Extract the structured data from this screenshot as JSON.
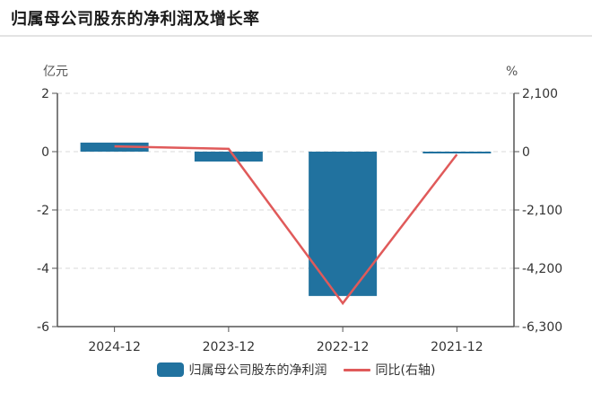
{
  "header": {
    "title": "归属母公司股东的净利润及增长率"
  },
  "colors": {
    "bar": "#21729f",
    "line": "#e05a5a",
    "grid": "#d9d9d9",
    "axis": "#555555"
  },
  "legend": {
    "items": [
      {
        "label": "归属母公司股东的净利润",
        "type": "bar"
      },
      {
        "label": "同比(右轴)",
        "type": "line"
      }
    ]
  },
  "chart_data": {
    "type": "bar",
    "title": "归属母公司股东的净利润及增长率",
    "categories": [
      "2024-12",
      "2023-12",
      "2022-12",
      "2021-12"
    ],
    "series": [
      {
        "name": "归属母公司股东的净利润",
        "type": "bar",
        "axis": "left",
        "values": [
          0.31,
          -0.34,
          -4.95,
          -0.06
        ]
      },
      {
        "name": "同比(右轴)",
        "type": "line",
        "axis": "right",
        "values": [
          190,
          100,
          -5460,
          -100
        ]
      }
    ],
    "ylabel_left": "亿元",
    "ylabel_right": "%",
    "ylim_left": [
      -6,
      2
    ],
    "ylim_right": [
      -6300,
      2100
    ],
    "yticks_left": [
      "2",
      "0",
      "-2",
      "-4",
      "-6"
    ],
    "yticks_right": [
      "2,100",
      "0",
      "-2,100",
      "-4,200",
      "-6,300"
    ],
    "grid": true,
    "legend_position": "bottom"
  }
}
